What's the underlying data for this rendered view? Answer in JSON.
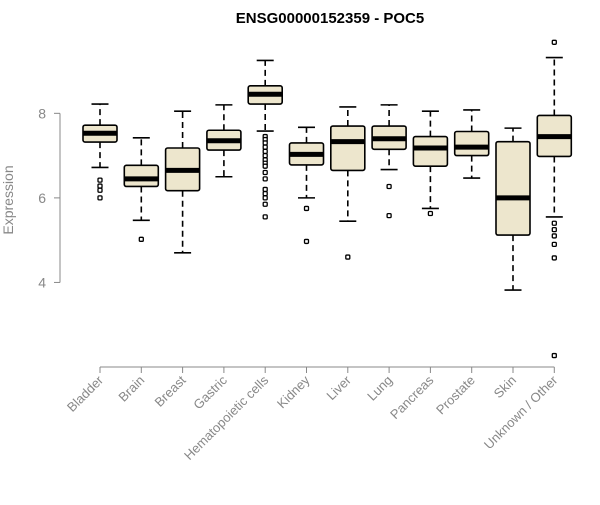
{
  "chart_data": {
    "type": "boxplot",
    "title": "ENSG00000152359 - POC5",
    "xlabel": "",
    "ylabel": "Expression",
    "ylim": [
      2.0,
      9.9
    ],
    "yticks": [
      4,
      6,
      8
    ],
    "grid": false,
    "legend": "none",
    "box_fill": "#ede6cd",
    "box_stroke": "#000000",
    "axis_color": "#888888",
    "categories": [
      "Bladder",
      "Brain",
      "Breast",
      "Gastric",
      "Hematopoietic cells",
      "Kidney",
      "Liver",
      "Lung",
      "Pancreas",
      "Prostate",
      "Skin",
      "Unknown / Other"
    ],
    "boxes": [
      {
        "category": "Bladder",
        "whisker_low": 6.72,
        "q1": 7.32,
        "median": 7.53,
        "q3": 7.72,
        "whisker_high": 8.22,
        "outliers": [
          6.42,
          6.28,
          6.18,
          6.0
        ]
      },
      {
        "category": "Brain",
        "whisker_low": 5.47,
        "q1": 6.27,
        "median": 6.45,
        "q3": 6.77,
        "whisker_high": 7.42,
        "outliers": [
          5.02
        ]
      },
      {
        "category": "Breast",
        "whisker_low": 4.7,
        "q1": 6.17,
        "median": 6.65,
        "q3": 7.18,
        "whisker_high": 8.05,
        "outliers": []
      },
      {
        "category": "Gastric",
        "whisker_low": 6.5,
        "q1": 7.13,
        "median": 7.35,
        "q3": 7.6,
        "whisker_high": 8.2,
        "outliers": []
      },
      {
        "category": "Hematopoietic cells",
        "whisker_low": 7.58,
        "q1": 8.22,
        "median": 8.45,
        "q3": 8.65,
        "whisker_high": 9.25,
        "outliers": [
          7.45,
          7.38,
          7.3,
          7.2,
          7.1,
          7.0,
          6.9,
          6.82,
          6.75,
          6.6,
          6.45,
          6.2,
          6.1,
          6.0,
          5.85,
          5.55
        ]
      },
      {
        "category": "Kidney",
        "whisker_low": 6.0,
        "q1": 6.78,
        "median": 7.03,
        "q3": 7.3,
        "whisker_high": 7.67,
        "outliers": [
          5.75,
          4.97
        ]
      },
      {
        "category": "Liver",
        "whisker_low": 5.45,
        "q1": 6.65,
        "median": 7.33,
        "q3": 7.7,
        "whisker_high": 8.15,
        "outliers": [
          4.6
        ]
      },
      {
        "category": "Lung",
        "whisker_low": 6.67,
        "q1": 7.15,
        "median": 7.4,
        "q3": 7.7,
        "whisker_high": 8.2,
        "outliers": [
          6.27,
          5.58
        ]
      },
      {
        "category": "Pancreas",
        "whisker_low": 5.75,
        "q1": 6.75,
        "median": 7.18,
        "q3": 7.45,
        "whisker_high": 8.05,
        "outliers": [
          5.63
        ]
      },
      {
        "category": "Prostate",
        "whisker_low": 6.47,
        "q1": 7.0,
        "median": 7.2,
        "q3": 7.57,
        "whisker_high": 8.08,
        "outliers": []
      },
      {
        "category": "Skin",
        "whisker_low": 3.82,
        "q1": 5.12,
        "median": 6.0,
        "q3": 7.33,
        "whisker_high": 7.65,
        "outliers": []
      },
      {
        "category": "Unknown / Other",
        "whisker_low": 5.55,
        "q1": 6.98,
        "median": 7.45,
        "q3": 7.95,
        "whisker_high": 9.32,
        "outliers": [
          9.68,
          5.4,
          5.25,
          5.1,
          4.9,
          4.58,
          2.27
        ]
      }
    ]
  }
}
